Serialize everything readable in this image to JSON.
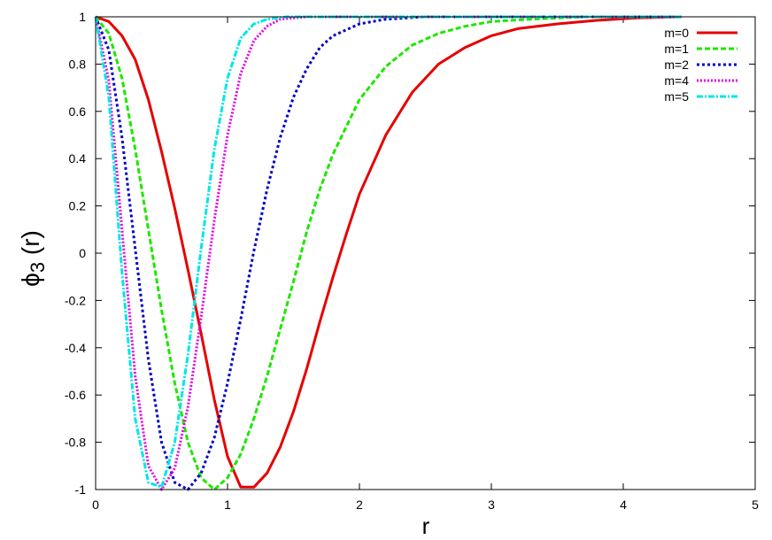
{
  "chart_data": {
    "type": "line",
    "title": "",
    "xlabel": "r",
    "ylabel_main": "ϕ",
    "ylabel_sub": "3",
    "ylabel_rest": " (r)",
    "xlim": [
      0,
      5
    ],
    "ylim": [
      -1,
      1
    ],
    "x_ticks": [
      "0",
      "1",
      "2",
      "3",
      "4",
      "5"
    ],
    "y_ticks": [
      "1",
      "0.8",
      "0.6",
      "0.4",
      "0.2",
      "0",
      "-0.2",
      "-0.4",
      "-0.6",
      "-0.8",
      "-1"
    ],
    "grid": false,
    "legend_position": "top-right",
    "series": [
      {
        "name": "m=0",
        "color": "#e60000",
        "dash": "solid",
        "points": [
          [
            0,
            1
          ],
          [
            0.1,
            0.98
          ],
          [
            0.2,
            0.92
          ],
          [
            0.3,
            0.82
          ],
          [
            0.4,
            0.65
          ],
          [
            0.5,
            0.43
          ],
          [
            0.6,
            0.19
          ],
          [
            0.7,
            -0.07
          ],
          [
            0.8,
            -0.34
          ],
          [
            0.9,
            -0.62
          ],
          [
            1.0,
            -0.86
          ],
          [
            1.1,
            -0.99
          ],
          [
            1.2,
            -0.99
          ],
          [
            1.3,
            -0.93
          ],
          [
            1.4,
            -0.82
          ],
          [
            1.5,
            -0.67
          ],
          [
            1.6,
            -0.49
          ],
          [
            1.7,
            -0.29
          ],
          [
            1.8,
            -0.1
          ],
          [
            1.9,
            0.08
          ],
          [
            2.0,
            0.25
          ],
          [
            2.2,
            0.5
          ],
          [
            2.4,
            0.68
          ],
          [
            2.6,
            0.8
          ],
          [
            2.8,
            0.87
          ],
          [
            3.0,
            0.92
          ],
          [
            3.2,
            0.95
          ],
          [
            3.5,
            0.97
          ],
          [
            3.8,
            0.985
          ],
          [
            4.1,
            0.995
          ],
          [
            4.44,
            1.0
          ]
        ]
      },
      {
        "name": "m=1",
        "color": "#1ee600",
        "dash": "6,3",
        "points": [
          [
            0,
            1
          ],
          [
            0.1,
            0.93
          ],
          [
            0.2,
            0.74
          ],
          [
            0.3,
            0.44
          ],
          [
            0.4,
            0.1
          ],
          [
            0.5,
            -0.24
          ],
          [
            0.6,
            -0.55
          ],
          [
            0.7,
            -0.8
          ],
          [
            0.8,
            -0.95
          ],
          [
            0.9,
            -1.0
          ],
          [
            1.0,
            -0.95
          ],
          [
            1.1,
            -0.85
          ],
          [
            1.2,
            -0.7
          ],
          [
            1.3,
            -0.52
          ],
          [
            1.4,
            -0.32
          ],
          [
            1.5,
            -0.12
          ],
          [
            1.6,
            0.09
          ],
          [
            1.7,
            0.27
          ],
          [
            1.8,
            0.42
          ],
          [
            2.0,
            0.65
          ],
          [
            2.2,
            0.79
          ],
          [
            2.4,
            0.88
          ],
          [
            2.6,
            0.93
          ],
          [
            2.8,
            0.96
          ],
          [
            3.0,
            0.98
          ],
          [
            3.3,
            0.99
          ],
          [
            3.7,
            1.0
          ],
          [
            4.44,
            1.0
          ]
        ]
      },
      {
        "name": "m=2",
        "color": "#0000c8",
        "dash": "3,3",
        "points": [
          [
            0,
            1
          ],
          [
            0.1,
            0.86
          ],
          [
            0.2,
            0.49
          ],
          [
            0.3,
            0.02
          ],
          [
            0.4,
            -0.45
          ],
          [
            0.5,
            -0.8
          ],
          [
            0.6,
            -0.97
          ],
          [
            0.7,
            -1.0
          ],
          [
            0.8,
            -0.93
          ],
          [
            0.9,
            -0.78
          ],
          [
            1.0,
            -0.55
          ],
          [
            1.1,
            -0.28
          ],
          [
            1.2,
            0.01
          ],
          [
            1.3,
            0.27
          ],
          [
            1.4,
            0.49
          ],
          [
            1.5,
            0.66
          ],
          [
            1.6,
            0.78
          ],
          [
            1.7,
            0.87
          ],
          [
            1.8,
            0.92
          ],
          [
            2.0,
            0.97
          ],
          [
            2.2,
            0.99
          ],
          [
            2.5,
            1.0
          ],
          [
            4.44,
            1.0
          ]
        ]
      },
      {
        "name": "m=4",
        "color": "#e600e6",
        "dash": "2,2",
        "points": [
          [
            0,
            1
          ],
          [
            0.1,
            0.73
          ],
          [
            0.2,
            0.1
          ],
          [
            0.3,
            -0.52
          ],
          [
            0.4,
            -0.9
          ],
          [
            0.5,
            -1.0
          ],
          [
            0.6,
            -0.91
          ],
          [
            0.7,
            -0.65
          ],
          [
            0.8,
            -0.27
          ],
          [
            0.9,
            0.14
          ],
          [
            1.0,
            0.5
          ],
          [
            1.1,
            0.76
          ],
          [
            1.2,
            0.9
          ],
          [
            1.3,
            0.96
          ],
          [
            1.4,
            0.99
          ],
          [
            1.6,
            1.0
          ],
          [
            4.44,
            1.0
          ]
        ]
      },
      {
        "name": "m=5",
        "color": "#00e6e6",
        "dash": "7,2,2,2",
        "points": [
          [
            0,
            1
          ],
          [
            0.1,
            0.66
          ],
          [
            0.2,
            -0.08
          ],
          [
            0.3,
            -0.7
          ],
          [
            0.4,
            -0.97
          ],
          [
            0.5,
            -0.99
          ],
          [
            0.6,
            -0.8
          ],
          [
            0.7,
            -0.43
          ],
          [
            0.8,
            0.02
          ],
          [
            0.9,
            0.44
          ],
          [
            1.0,
            0.74
          ],
          [
            1.1,
            0.91
          ],
          [
            1.2,
            0.97
          ],
          [
            1.3,
            0.99
          ],
          [
            1.45,
            1.0
          ],
          [
            4.44,
            1.0
          ]
        ]
      }
    ]
  }
}
